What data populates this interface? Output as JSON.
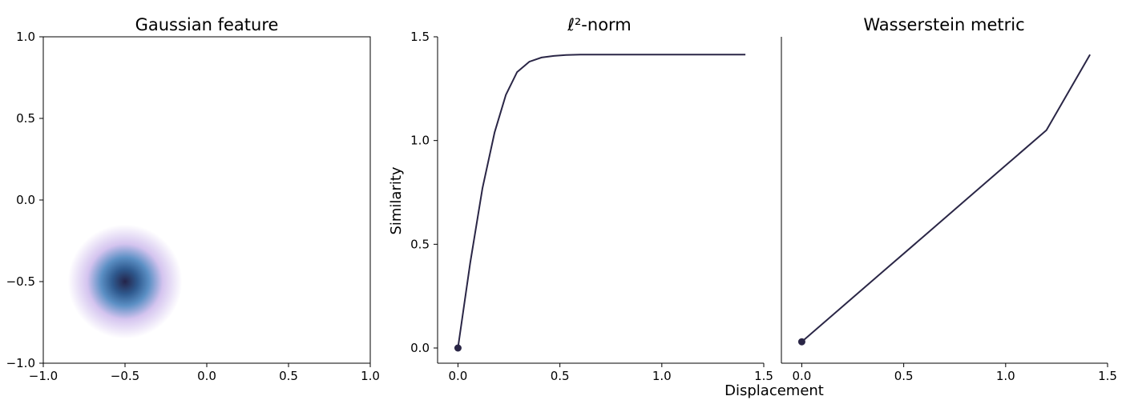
{
  "chart_data": [
    {
      "type": "heatmap",
      "title": "Gaussian feature",
      "xlim": [
        -1.0,
        1.0
      ],
      "ylim": [
        -1.0,
        1.0
      ],
      "xticks": [
        "−1.0",
        "−0.5",
        "0.0",
        "0.5",
        "1.0"
      ],
      "yticks": [
        "−1.0",
        "−0.5",
        "0.0",
        "0.5",
        "1.0"
      ],
      "gaussian_center": [
        -0.5,
        -0.5
      ],
      "gaussian_sigma": 0.1,
      "colormap": [
        "#ffffff",
        "#d4c4ef",
        "#5b8fc4",
        "#2f5a8f",
        "#24244a"
      ]
    },
    {
      "type": "line",
      "title": "ℓ²-norm",
      "ylabel": "Similarity",
      "xlim": [
        -0.1,
        1.5
      ],
      "ylim": [
        -0.07,
        1.5
      ],
      "xticks": [
        "0.0",
        "0.5",
        "1.0",
        "1.5"
      ],
      "yticks": [
        "0.0",
        "0.5",
        "1.0",
        "1.5"
      ],
      "x": [
        0.0,
        0.06,
        0.12,
        0.18,
        0.235,
        0.29,
        0.35,
        0.41,
        0.47,
        0.53,
        0.6,
        0.7,
        0.8,
        0.9,
        1.0,
        1.1,
        1.2,
        1.3,
        1.41
      ],
      "y": [
        0.0,
        0.41,
        0.77,
        1.04,
        1.22,
        1.33,
        1.38,
        1.4,
        1.408,
        1.412,
        1.414,
        1.414,
        1.414,
        1.414,
        1.414,
        1.414,
        1.414,
        1.414,
        1.414
      ],
      "marker_start": [
        0.0,
        0.0
      ],
      "color": "#2a2646"
    },
    {
      "type": "line",
      "title": "Wasserstein metric",
      "xlim": [
        -0.1,
        1.5
      ],
      "ylim": [
        -0.07,
        1.5
      ],
      "xticks": [
        "0.0",
        "0.5",
        "1.0",
        "1.5"
      ],
      "x": [
        0.0,
        0.2,
        0.4,
        0.6,
        0.8,
        1.0,
        1.2,
        1.414
      ],
      "y": [
        0.03,
        0.2,
        0.37,
        0.54,
        0.71,
        0.88,
        1.05,
        1.414
      ],
      "marker_start": [
        0.0,
        0.03
      ],
      "color": "#2a2646"
    }
  ],
  "shared_xlabel": "Displacement"
}
